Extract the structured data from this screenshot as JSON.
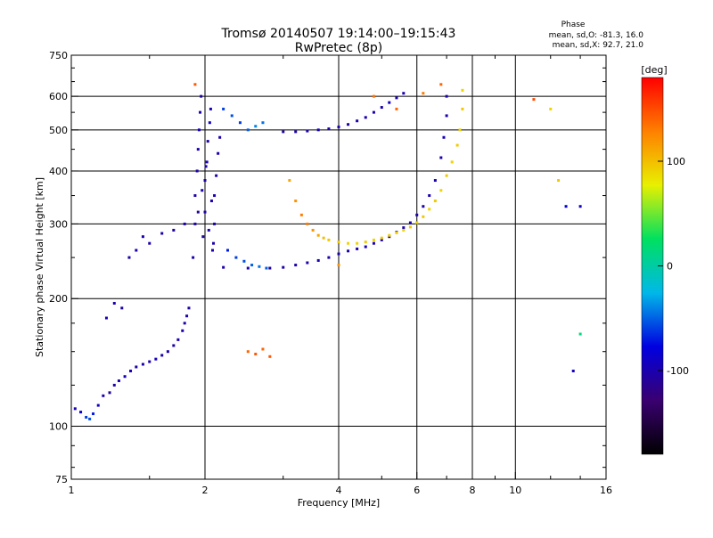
{
  "header": {
    "title": "Tromsø 20140507 19:14:00–19:15:43",
    "subtitle": "RwPretec (8p)",
    "phase_heading": "Phase",
    "phase_o": "mean, sd,O: -81.3, 16.0",
    "phase_x": "mean, sd,X: 92.7, 21.0"
  },
  "colorbar": {
    "label": "[deg]",
    "min": -180,
    "max": 180,
    "ticks": [
      {
        "value": 100,
        "label": "100"
      },
      {
        "value": 0,
        "label": "0"
      },
      {
        "value": -100,
        "label": "-100"
      }
    ],
    "stops": [
      "#000000",
      "#3a0070",
      "#0000e0",
      "#00b8e8",
      "#00e060",
      "#e8f000",
      "#ff8000",
      "#ff0000"
    ]
  },
  "chart_data": {
    "type": "scatter",
    "title": "Tromsø 20140507 19:14:00–19:15:43",
    "xlabel": "Frequency [MHz]",
    "ylabel": "Stationary phase Virtual Height [km]",
    "xscale": "log",
    "yscale": "log",
    "xlim": [
      1,
      16
    ],
    "ylim": [
      75,
      750
    ],
    "grid": true,
    "x_ticks": [
      {
        "value": 1,
        "label": "1"
      },
      {
        "value": 2,
        "label": "2"
      },
      {
        "value": 4,
        "label": "4"
      },
      {
        "value": 6,
        "label": "6"
      },
      {
        "value": 8,
        "label": "8"
      },
      {
        "value": 10,
        "label": "10"
      },
      {
        "value": 16,
        "label": "16"
      }
    ],
    "y_ticks": [
      {
        "value": 75,
        "label": "75"
      },
      {
        "value": 100,
        "label": "100"
      },
      {
        "value": 200,
        "label": "200"
      },
      {
        "value": 300,
        "label": "300"
      },
      {
        "value": 400,
        "label": "400"
      },
      {
        "value": 500,
        "label": "500"
      },
      {
        "value": 600,
        "label": "600"
      },
      {
        "value": 750,
        "label": "750"
      }
    ],
    "x_gridlines": [
      2,
      4,
      6,
      8,
      10
    ],
    "y_gridlines": [
      100,
      200,
      300,
      400,
      500,
      600
    ],
    "series": [
      {
        "points": [
          [
            1.02,
            110,
            -95
          ],
          [
            1.05,
            108,
            -85
          ],
          [
            1.08,
            105,
            -60
          ],
          [
            1.1,
            104,
            -55
          ],
          [
            1.12,
            107,
            -70
          ],
          [
            1.15,
            112,
            -90
          ],
          [
            1.18,
            118,
            -100
          ],
          [
            1.22,
            120,
            -110
          ],
          [
            1.25,
            125,
            -105
          ],
          [
            1.28,
            128,
            -100
          ],
          [
            1.32,
            131,
            -95
          ],
          [
            1.36,
            135,
            -100
          ],
          [
            1.4,
            138,
            -105
          ],
          [
            1.45,
            140,
            -100
          ],
          [
            1.5,
            142,
            -100
          ],
          [
            1.55,
            144,
            -95
          ],
          [
            1.6,
            147,
            -100
          ],
          [
            1.65,
            150,
            -100
          ],
          [
            1.7,
            155,
            -105
          ],
          [
            1.74,
            160,
            -100
          ],
          [
            1.78,
            168,
            -100
          ],
          [
            1.8,
            175,
            -100
          ],
          [
            1.82,
            182,
            -100
          ],
          [
            1.84,
            190,
            -105
          ],
          [
            1.2,
            180,
            -100
          ],
          [
            1.25,
            195,
            -100
          ],
          [
            1.3,
            190,
            -105
          ],
          [
            1.35,
            250,
            -100
          ],
          [
            1.4,
            260,
            -100
          ],
          [
            1.45,
            280,
            -100
          ],
          [
            1.5,
            270,
            -100
          ],
          [
            1.6,
            285,
            -100
          ],
          [
            1.7,
            290,
            -105
          ],
          [
            1.8,
            300,
            -100
          ]
        ]
      },
      {
        "points": [
          [
            1.88,
            250,
            -100
          ],
          [
            1.9,
            300,
            -100
          ],
          [
            1.9,
            350,
            -105
          ],
          [
            1.92,
            400,
            -100
          ],
          [
            1.93,
            450,
            -100
          ],
          [
            1.94,
            500,
            -95
          ],
          [
            1.95,
            550,
            -100
          ],
          [
            1.96,
            600,
            -100
          ],
          [
            1.98,
            280,
            -105
          ],
          [
            2.0,
            320,
            -100
          ],
          [
            2.0,
            380,
            -100
          ],
          [
            2.02,
            420,
            -100
          ],
          [
            2.03,
            470,
            -100
          ],
          [
            2.05,
            520,
            -90
          ],
          [
            2.06,
            560,
            -100
          ],
          [
            2.08,
            260,
            -100
          ],
          [
            2.1,
            300,
            -105
          ],
          [
            2.1,
            350,
            -100
          ],
          [
            2.12,
            390,
            -100
          ],
          [
            2.14,
            440,
            -100
          ],
          [
            2.16,
            480,
            -100
          ],
          [
            1.93,
            320,
            -110
          ],
          [
            1.97,
            360,
            -95
          ],
          [
            2.01,
            410,
            -100
          ],
          [
            2.04,
            290,
            -100
          ],
          [
            2.07,
            340,
            -100
          ],
          [
            2.09,
            270,
            -100
          ]
        ]
      },
      {
        "points": [
          [
            2.2,
            560,
            -60
          ],
          [
            2.3,
            540,
            -55
          ],
          [
            2.4,
            520,
            -60
          ],
          [
            2.5,
            500,
            -50
          ],
          [
            2.6,
            510,
            -40
          ],
          [
            2.7,
            520,
            -45
          ],
          [
            2.25,
            260,
            -70
          ],
          [
            2.35,
            250,
            -60
          ],
          [
            2.45,
            245,
            -55
          ],
          [
            2.55,
            240,
            -50
          ],
          [
            2.65,
            238,
            -45
          ],
          [
            2.75,
            236,
            -50
          ]
        ]
      },
      {
        "points": [
          [
            3.0,
            495,
            -105
          ],
          [
            3.2,
            495,
            -100
          ],
          [
            3.4,
            497,
            -100
          ],
          [
            3.6,
            500,
            -95
          ],
          [
            3.8,
            503,
            -100
          ],
          [
            4.0,
            508,
            -100
          ],
          [
            4.2,
            515,
            -105
          ],
          [
            4.4,
            525,
            -100
          ],
          [
            4.6,
            535,
            -100
          ],
          [
            4.8,
            550,
            -100
          ],
          [
            5.0,
            565,
            -100
          ],
          [
            5.2,
            580,
            -95
          ],
          [
            5.4,
            595,
            -100
          ],
          [
            5.6,
            610,
            -100
          ]
        ]
      },
      {
        "points": [
          [
            2.2,
            237,
            -100
          ],
          [
            2.5,
            236,
            -100
          ],
          [
            2.8,
            236,
            -105
          ],
          [
            3.0,
            237,
            -100
          ],
          [
            3.2,
            240,
            -100
          ],
          [
            3.4,
            243,
            -100
          ],
          [
            3.6,
            246,
            -95
          ],
          [
            3.8,
            250,
            -100
          ],
          [
            4.0,
            255,
            -100
          ],
          [
            4.2,
            259,
            -100
          ],
          [
            4.4,
            262,
            -105
          ],
          [
            4.6,
            265,
            -100
          ],
          [
            4.8,
            270,
            -100
          ],
          [
            5.0,
            275,
            -100
          ],
          [
            5.2,
            280,
            -100
          ],
          [
            5.4,
            287,
            -95
          ],
          [
            5.6,
            294,
            -100
          ],
          [
            5.8,
            302,
            -100
          ],
          [
            6.0,
            315,
            -100
          ],
          [
            6.2,
            330,
            -105
          ],
          [
            6.4,
            350,
            -100
          ],
          [
            6.6,
            380,
            -100
          ],
          [
            6.8,
            430,
            -100
          ],
          [
            6.9,
            480,
            -95
          ],
          [
            7.0,
            540,
            -100
          ],
          [
            7.0,
            600,
            -100
          ]
        ]
      },
      {
        "points": [
          [
            3.1,
            380,
            110
          ],
          [
            3.2,
            340,
            120
          ],
          [
            3.3,
            315,
            130
          ],
          [
            3.4,
            300,
            130
          ],
          [
            3.5,
            290,
            120
          ],
          [
            3.6,
            282,
            110
          ],
          [
            3.7,
            278,
            100
          ],
          [
            3.8,
            275,
            95
          ],
          [
            4.0,
            272,
            95
          ],
          [
            4.2,
            270,
            90
          ],
          [
            4.4,
            270,
            90
          ],
          [
            4.6,
            272,
            95
          ],
          [
            4.8,
            275,
            90
          ],
          [
            5.0,
            278,
            95
          ],
          [
            5.2,
            282,
            90
          ],
          [
            5.4,
            286,
            95
          ],
          [
            5.6,
            290,
            90
          ],
          [
            5.8,
            295,
            95
          ],
          [
            6.0,
            302,
            90
          ],
          [
            6.2,
            312,
            95
          ],
          [
            6.4,
            325,
            90
          ],
          [
            6.6,
            340,
            95
          ],
          [
            6.8,
            360,
            90
          ],
          [
            7.0,
            390,
            95
          ],
          [
            7.2,
            420,
            90
          ],
          [
            7.4,
            460,
            95
          ],
          [
            7.5,
            500,
            90
          ],
          [
            7.6,
            560,
            95
          ],
          [
            7.6,
            620,
            90
          ]
        ]
      },
      {
        "points": [
          [
            2.5,
            150,
            140
          ],
          [
            2.6,
            148,
            145
          ],
          [
            2.7,
            152,
            140
          ],
          [
            2.8,
            146,
            145
          ],
          [
            4.8,
            600,
            135
          ],
          [
            6.2,
            610,
            130
          ],
          [
            6.8,
            640,
            140
          ],
          [
            11,
            590,
            150
          ],
          [
            5.4,
            560,
            140
          ],
          [
            4.0,
            240,
            120
          ],
          [
            1.9,
            640,
            145
          ],
          [
            12,
            560,
            90
          ],
          [
            12.5,
            380,
            95
          ],
          [
            13,
            330,
            -80
          ],
          [
            14,
            330,
            -90
          ],
          [
            13.5,
            135,
            -90
          ],
          [
            14,
            165,
            15
          ]
        ]
      }
    ]
  }
}
